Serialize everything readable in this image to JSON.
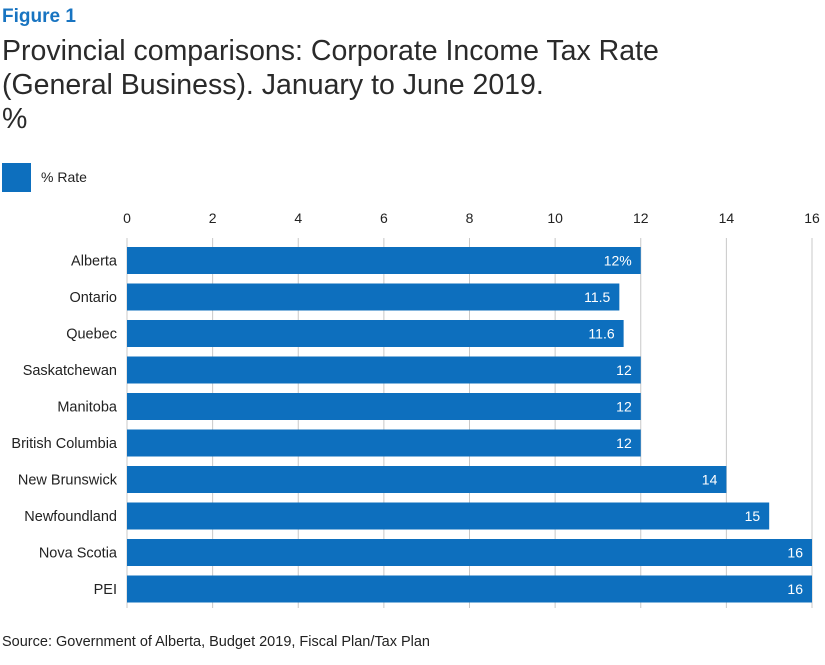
{
  "figure_label": "Figure 1",
  "title_lines": [
    "Provincial comparisons: Corporate Income Tax Rate",
    "(General Business). January to June 2019.",
    "%"
  ],
  "source": "Source: Government of Alberta, Budget 2019, Fiscal Plan/Tax Plan",
  "colors": {
    "bar": "#0d6fbe",
    "accent": "#1874c1",
    "grid": "#c8c8c8"
  },
  "chart_data": {
    "type": "bar",
    "orientation": "horizontal",
    "categories": [
      "Alberta",
      "Ontario",
      "Quebec",
      "Saskatchewan",
      "Manitoba",
      "British Columbia",
      "New Brunswick",
      "Newfoundland",
      "Nova Scotia",
      "PEI"
    ],
    "series": [
      {
        "name": "% Rate",
        "values": [
          12,
          11.5,
          11.6,
          12,
          12,
          12,
          14,
          15,
          16,
          16
        ],
        "data_labels": [
          "12%",
          "11.5",
          "11.6",
          "12",
          "12",
          "12",
          "14",
          "15",
          "16",
          "16"
        ]
      }
    ],
    "xlim": [
      0,
      16
    ],
    "x_ticks": [
      "0",
      "2",
      "4",
      "6",
      "8",
      "10",
      "12",
      "14",
      "16"
    ],
    "x_axis_position": "top",
    "grid": true,
    "legend_position": "top-left"
  }
}
